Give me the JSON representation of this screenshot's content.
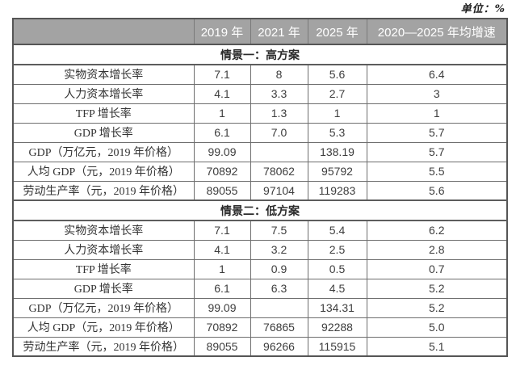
{
  "unit_label": "单位：%",
  "table": {
    "columns": [
      "",
      "2019 年",
      "2021 年",
      "2025 年",
      "2020—2025 年均增速"
    ],
    "sections": [
      {
        "title": "情景一：高方案",
        "rows": [
          {
            "label": "实物资本增长率",
            "y2019": "7.1",
            "y2021": "8",
            "y2025": "5.6",
            "avg": "6.4"
          },
          {
            "label": "人力资本增长率",
            "y2019": "4.1",
            "y2021": "3.3",
            "y2025": "2.7",
            "avg": "3"
          },
          {
            "label": "TFP 增长率",
            "y2019": "1",
            "y2021": "1.3",
            "y2025": "1",
            "avg": "1"
          },
          {
            "label": "GDP 增长率",
            "y2019": "6.1",
            "y2021": "7.0",
            "y2025": "5.3",
            "avg": "5.7"
          },
          {
            "label": "GDP（万亿元，2019 年价格）",
            "y2019": "99.09",
            "y2021": "",
            "y2025": "138.19",
            "avg": "5.7"
          },
          {
            "label": "人均 GDP（元，2019 年价格）",
            "y2019": "70892",
            "y2021": "78062",
            "y2025": "95792",
            "avg": "5.5"
          },
          {
            "label": "劳动生产率（元，2019 年价格）",
            "y2019": "89055",
            "y2021": "97104",
            "y2025": "119283",
            "avg": "5.6"
          }
        ]
      },
      {
        "title": "情景二：低方案",
        "rows": [
          {
            "label": "实物资本增长率",
            "y2019": "7.1",
            "y2021": "7.5",
            "y2025": "5.4",
            "avg": "6.2"
          },
          {
            "label": "人力资本增长率",
            "y2019": "4.1",
            "y2021": "3.2",
            "y2025": "2.5",
            "avg": "2.8"
          },
          {
            "label": "TFP 增长率",
            "y2019": "1",
            "y2021": "0.9",
            "y2025": "0.5",
            "avg": "0.7"
          },
          {
            "label": "GDP 增长率",
            "y2019": "6.1",
            "y2021": "6.3",
            "y2025": "4.5",
            "avg": "5.2"
          },
          {
            "label": "GDP（万亿元，2019 年价格）",
            "y2019": "99.09",
            "y2021": "",
            "y2025": "134.31",
            "avg": "5.2"
          },
          {
            "label": "人均 GDP（元，2019 年价格）",
            "y2019": "70892",
            "y2021": "76865",
            "y2025": "92288",
            "avg": "5.0"
          },
          {
            "label": "劳动生产率（元，2019 年价格）",
            "y2019": "89055",
            "y2021": "96266",
            "y2025": "115915",
            "avg": "5.1"
          }
        ]
      }
    ]
  },
  "colors": {
    "header_bg": "#a3a3a3",
    "header_text": "#ffffff",
    "border": "#6e6e6e",
    "outer_border": "#555555",
    "body_text": "#3d3d3d"
  }
}
